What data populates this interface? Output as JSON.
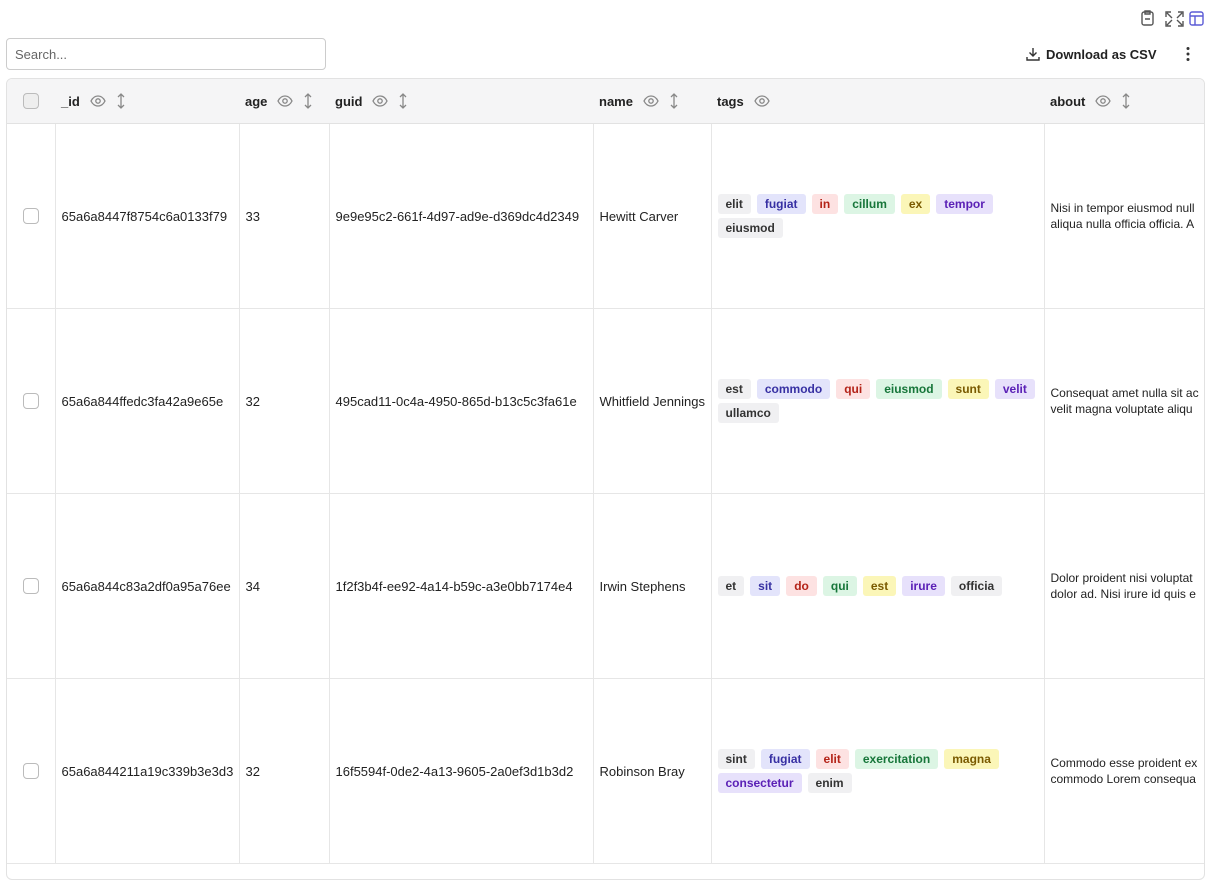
{
  "toolbar": {
    "search_placeholder": "Search...",
    "download": "Download as CSV"
  },
  "table": {
    "columns": [
      {
        "label": "_id",
        "sortable": true
      },
      {
        "label": "age",
        "sortable": true
      },
      {
        "label": "guid",
        "sortable": true
      },
      {
        "label": "name",
        "sortable": true
      },
      {
        "label": "tags",
        "sortable": false
      },
      {
        "label": "about",
        "sortable": true
      }
    ],
    "tag_colors": [
      {
        "bg": "#f0f0f2",
        "fg": "#333"
      },
      {
        "bg": "#e3e4fb",
        "fg": "#3730a3"
      },
      {
        "bg": "#fde2e2",
        "fg": "#b42318"
      },
      {
        "bg": "#dcf5e4",
        "fg": "#17763a"
      },
      {
        "bg": "#fbf6b8",
        "fg": "#7a5a00"
      },
      {
        "bg": "#e7e1fb",
        "fg": "#5b21b6"
      }
    ],
    "rows": [
      {
        "_id": "65a6a8447f8754c6a0133f79",
        "age": 33,
        "guid": "9e9e95c2-661f-4d97-ad9e-d369dc4d2349",
        "name": "Hewitt Carver",
        "tags": [
          "elit",
          "fugiat",
          "in",
          "cillum",
          "ex",
          "tempor",
          "eiusmod"
        ],
        "about": [
          "Nisi in tempor eiusmod null",
          "aliqua nulla officia officia. A"
        ]
      },
      {
        "_id": "65a6a844ffedc3fa42a9e65e",
        "age": 32,
        "guid": "495cad11-0c4a-4950-865d-b13c5c3fa61e",
        "name": "Whitfield Jennings",
        "tags": [
          "est",
          "commodo",
          "qui",
          "eiusmod",
          "sunt",
          "velit",
          "ullamco"
        ],
        "about": [
          "Consequat amet nulla sit ac",
          "velit magna voluptate aliqu"
        ]
      },
      {
        "_id": "65a6a844c83a2df0a95a76ee",
        "age": 34,
        "guid": "1f2f3b4f-ee92-4a14-b59c-a3e0bb7174e4",
        "name": "Irwin Stephens",
        "tags": [
          "et",
          "sit",
          "do",
          "qui",
          "est",
          "irure",
          "officia"
        ],
        "about": [
          "Dolor proident nisi voluptat",
          "dolor ad. Nisi irure id quis e"
        ]
      },
      {
        "_id": "65a6a844211a19c339b3e3d3",
        "age": 32,
        "guid": "16f5594f-0de2-4a13-9605-2a0ef3d1b3d2",
        "name": "Robinson Bray",
        "tags": [
          "sint",
          "fugiat",
          "elit",
          "exercitation",
          "magna",
          "consectetur",
          "enim"
        ],
        "about": [
          "Commodo esse proident ex",
          "commodo Lorem consequa"
        ]
      }
    ]
  }
}
